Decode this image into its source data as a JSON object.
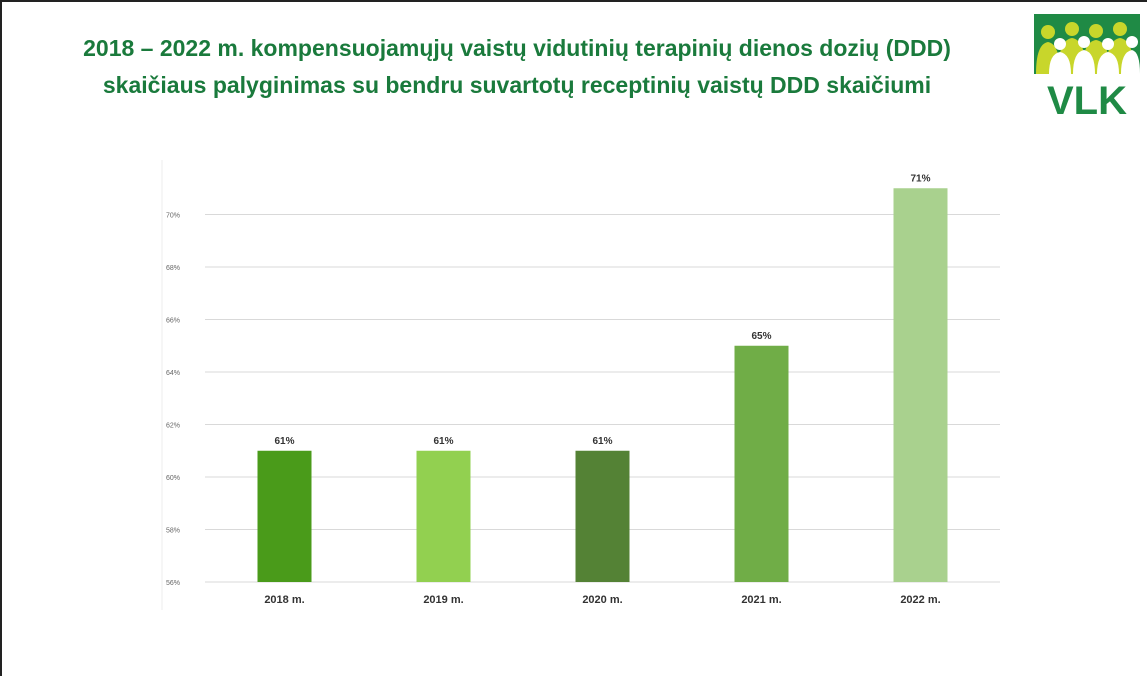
{
  "header": {
    "title_line1": "2018 – 2022 m. kompensuojamųjų vaistų vidutinių terapinių dienos dozių (DDD)",
    "title_line2": "skaičiaus palyginimas su bendru suvartotų receptinių vaistų DDD skaičiumi"
  },
  "logo": {
    "text": "VLK",
    "colors": {
      "green": "#1f8a45",
      "lime": "#c8d62b"
    }
  },
  "chart_data": {
    "type": "bar",
    "categories": [
      "2018 m.",
      "2019 m.",
      "2020 m.",
      "2021 m.",
      "2022 m."
    ],
    "values": [
      61,
      61,
      61,
      65,
      71
    ],
    "data_labels": [
      "61%",
      "61%",
      "61%",
      "65%",
      "71%"
    ],
    "bar_colors": [
      "#4a9b1a",
      "#92d050",
      "#548235",
      "#70ad47",
      "#a9d18e"
    ],
    "ylim": [
      56,
      72
    ],
    "yticks": [
      56,
      58,
      60,
      62,
      64,
      66,
      68,
      70
    ],
    "ytick_labels": [
      "56%",
      "58%",
      "60%",
      "62%",
      "64%",
      "66%",
      "68%",
      "70%"
    ],
    "grid": true,
    "legend": "none",
    "title": "",
    "xlabel": "",
    "ylabel": ""
  }
}
